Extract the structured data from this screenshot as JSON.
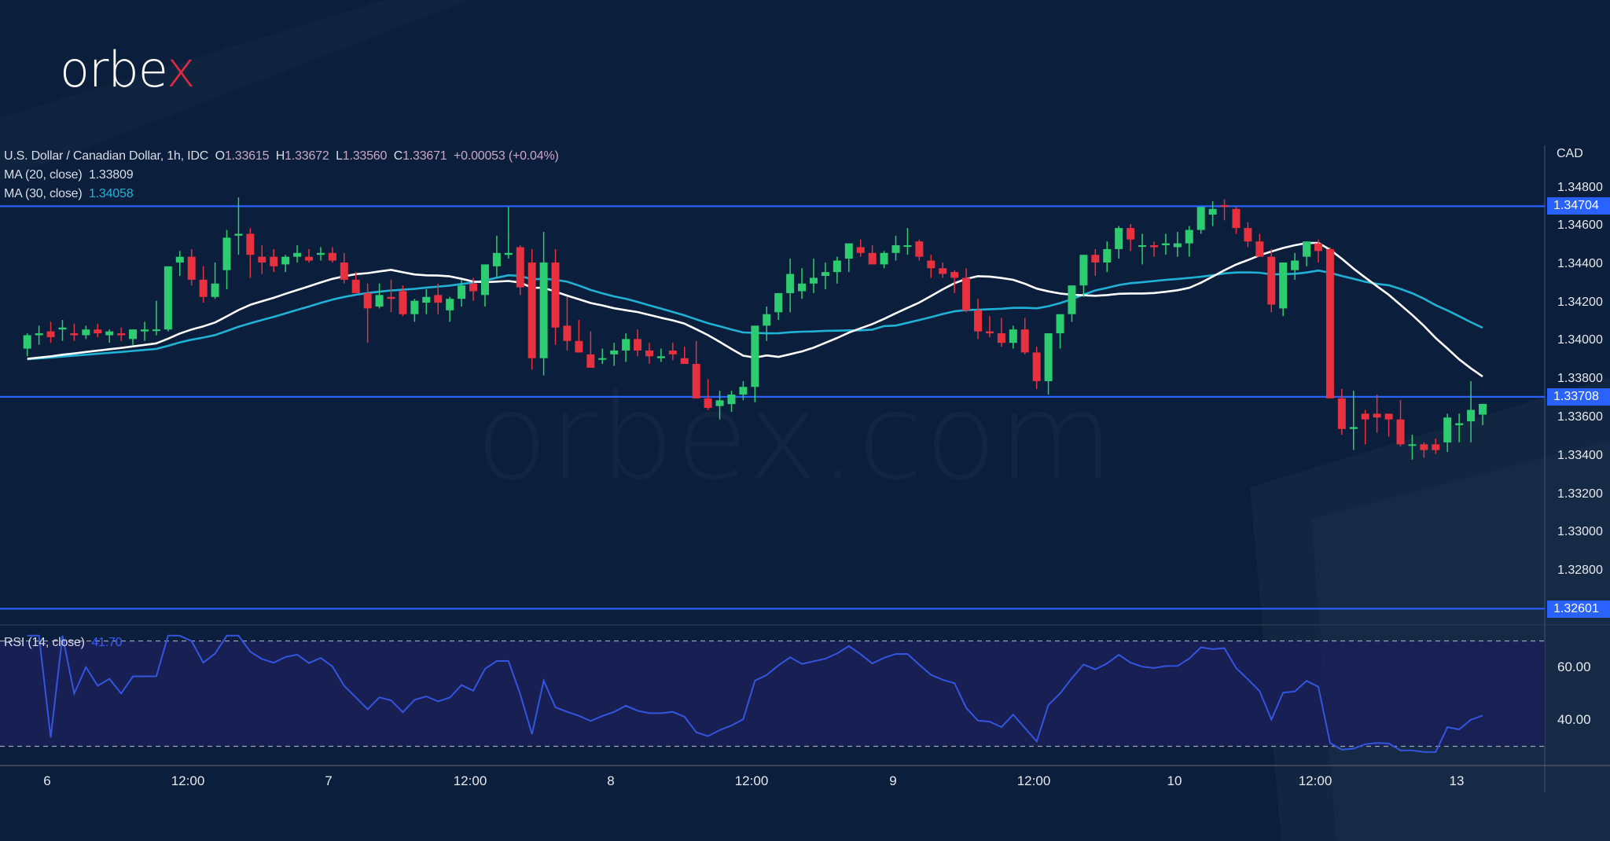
{
  "brand": {
    "logo_text": "orbe",
    "logo_accent": "x",
    "watermark": "orbex.com"
  },
  "legend": {
    "symbol": "U.S. Dollar / Canadian Dollar, 1h, IDC",
    "open_label": "O",
    "open": "1.33615",
    "high_label": "H",
    "high": "1.33672",
    "low_label": "L",
    "low": "1.33560",
    "close_label": "C",
    "close": "1.33671",
    "change": "+0.00053 (+0.04%)",
    "ma20_label": "MA (20, close)",
    "ma20_value": "1.33809",
    "ma30_label": "MA (30, close)",
    "ma30_value": "1.34058",
    "rsi_label": "RSI (14, close)",
    "rsi_value": "41.70"
  },
  "price_axis": {
    "currency": "CAD",
    "ticks": [
      "1.34800",
      "1.34600",
      "1.34400",
      "1.34200",
      "1.34000",
      "1.33800",
      "1.33600",
      "1.33400",
      "1.33200",
      "1.33000",
      "1.32800"
    ],
    "tags": [
      "1.34704",
      "1.33708",
      "1.32601"
    ]
  },
  "rsi_axis": {
    "ticks": [
      "60.00",
      "40.00"
    ]
  },
  "time_axis": {
    "labels": [
      "6",
      "12:00",
      "7",
      "12:00",
      "8",
      "12:00",
      "9",
      "12:00",
      "10",
      "12:00",
      "13"
    ]
  },
  "colors": {
    "background": "#0b1e3b",
    "bull": "#2ecc71",
    "bear": "#e8313f",
    "ma20": "#ffffff",
    "ma30": "#1fb2d6",
    "hline": "#2962ff",
    "rsi_line": "#3355e0",
    "rsi_band": "#1a1f55"
  },
  "chart_data": [
    {
      "type": "candlestick",
      "title": "U.S. Dollar / Canadian Dollar, 1h, IDC",
      "ylabel": "CAD",
      "ylim": [
        1.3268,
        1.349
      ],
      "x_tick_labels": [
        "6",
        "12:00",
        "7",
        "12:00",
        "8",
        "12:00",
        "9",
        "12:00",
        "10",
        "12:00",
        "13"
      ],
      "last_ohlc": {
        "open": 1.33615,
        "high": 1.33672,
        "low": 1.3356,
        "close": 1.33671,
        "change": 0.00053,
        "change_pct": 0.04
      },
      "horizontal_lines": [
        1.34704,
        1.33708,
        1.32601
      ],
      "series": [
        {
          "name": "MA (20, close)",
          "last_value": 1.33809,
          "color": "#ffffff"
        },
        {
          "name": "MA (30, close)",
          "last_value": 1.34058,
          "color": "#1fb2d6"
        }
      ],
      "candles": [
        [
          1.3396,
          1.3404,
          1.3392,
          1.3403
        ],
        [
          1.3403,
          1.3408,
          1.3398,
          1.3404
        ],
        [
          1.3405,
          1.341,
          1.3399,
          1.3402
        ],
        [
          1.3406,
          1.3411,
          1.34,
          1.3407
        ],
        [
          1.3404,
          1.3409,
          1.34,
          1.3403
        ],
        [
          1.3403,
          1.3408,
          1.3401,
          1.3406
        ],
        [
          1.3406,
          1.3409,
          1.3402,
          1.3404
        ],
        [
          1.3403,
          1.3406,
          1.3399,
          1.3405
        ],
        [
          1.3404,
          1.3407,
          1.34,
          1.3403
        ],
        [
          1.3401,
          1.3406,
          1.3398,
          1.3406
        ],
        [
          1.3405,
          1.341,
          1.34,
          1.3406
        ],
        [
          1.3406,
          1.3421,
          1.3403,
          1.3406
        ],
        [
          1.3406,
          1.3438,
          1.3405,
          1.3439
        ],
        [
          1.3441,
          1.3447,
          1.3434,
          1.3444
        ],
        [
          1.3444,
          1.3448,
          1.3429,
          1.3432
        ],
        [
          1.3432,
          1.3439,
          1.342,
          1.3423
        ],
        [
          1.3423,
          1.3441,
          1.3422,
          1.343
        ],
        [
          1.3437,
          1.3458,
          1.3427,
          1.3454
        ],
        [
          1.3455,
          1.3475,
          1.3445,
          1.3456
        ],
        [
          1.3456,
          1.3459,
          1.3433,
          1.3445
        ],
        [
          1.3444,
          1.345,
          1.3435,
          1.3441
        ],
        [
          1.3444,
          1.3448,
          1.3436,
          1.3439
        ],
        [
          1.344,
          1.3445,
          1.3436,
          1.3444
        ],
        [
          1.3444,
          1.345,
          1.3441,
          1.3446
        ],
        [
          1.3444,
          1.3448,
          1.3441,
          1.3442
        ],
        [
          1.3445,
          1.3449,
          1.3442,
          1.3446
        ],
        [
          1.3446,
          1.3449,
          1.3441,
          1.3442
        ],
        [
          1.3441,
          1.3446,
          1.343,
          1.3432
        ],
        [
          1.3432,
          1.3436,
          1.3426,
          1.3425
        ],
        [
          1.3425,
          1.343,
          1.3399,
          1.3417
        ],
        [
          1.3418,
          1.343,
          1.3417,
          1.3424
        ],
        [
          1.3423,
          1.3432,
          1.3415,
          1.3422
        ],
        [
          1.3426,
          1.3429,
          1.3413,
          1.3414
        ],
        [
          1.3414,
          1.3422,
          1.341,
          1.3421
        ],
        [
          1.342,
          1.3427,
          1.3414,
          1.3423
        ],
        [
          1.3424,
          1.343,
          1.3414,
          1.342
        ],
        [
          1.3416,
          1.3423,
          1.341,
          1.3422
        ],
        [
          1.3422,
          1.3432,
          1.3418,
          1.3429
        ],
        [
          1.343,
          1.3433,
          1.3421,
          1.3426
        ],
        [
          1.3424,
          1.3433,
          1.3418,
          1.344
        ],
        [
          1.3439,
          1.3455,
          1.3433,
          1.3446
        ],
        [
          1.3445,
          1.347,
          1.3443,
          1.3446
        ],
        [
          1.3449,
          1.345,
          1.3424,
          1.3428
        ],
        [
          1.3441,
          1.3448,
          1.3385,
          1.3391
        ],
        [
          1.3391,
          1.3457,
          1.3382,
          1.3441
        ],
        [
          1.3441,
          1.3448,
          1.3398,
          1.3407
        ],
        [
          1.3408,
          1.3423,
          1.3395,
          1.34
        ],
        [
          1.34,
          1.3411,
          1.3394,
          1.3394
        ],
        [
          1.3393,
          1.3405,
          1.3388,
          1.3386
        ],
        [
          1.3391,
          1.3396,
          1.3388,
          1.3391
        ],
        [
          1.3393,
          1.3399,
          1.3387,
          1.3395
        ],
        [
          1.3395,
          1.3404,
          1.3389,
          1.3401
        ],
        [
          1.3401,
          1.3406,
          1.3392,
          1.3395
        ],
        [
          1.3395,
          1.3399,
          1.3388,
          1.3392
        ],
        [
          1.3391,
          1.3396,
          1.3389,
          1.3392
        ],
        [
          1.3395,
          1.3399,
          1.339,
          1.3393
        ],
        [
          1.3391,
          1.3397,
          1.3389,
          1.3388
        ],
        [
          1.3388,
          1.34,
          1.3385,
          1.337
        ],
        [
          1.337,
          1.338,
          1.3364,
          1.3365
        ],
        [
          1.3366,
          1.3374,
          1.3359,
          1.3369
        ],
        [
          1.3367,
          1.3374,
          1.3363,
          1.3372
        ],
        [
          1.3372,
          1.3379,
          1.3369,
          1.3376
        ],
        [
          1.3376,
          1.3405,
          1.3368,
          1.3408
        ],
        [
          1.3408,
          1.3418,
          1.34,
          1.3414
        ],
        [
          1.3415,
          1.3425,
          1.3411,
          1.3425
        ],
        [
          1.3425,
          1.3443,
          1.3415,
          1.3435
        ],
        [
          1.3426,
          1.3438,
          1.3422,
          1.343
        ],
        [
          1.343,
          1.3443,
          1.3425,
          1.3433
        ],
        [
          1.3434,
          1.3441,
          1.3427,
          1.3436
        ],
        [
          1.3436,
          1.3444,
          1.343,
          1.3442
        ],
        [
          1.3443,
          1.3449,
          1.3436,
          1.3451
        ],
        [
          1.3449,
          1.3453,
          1.3444,
          1.3446
        ],
        [
          1.3446,
          1.345,
          1.3441,
          1.344
        ],
        [
          1.344,
          1.3447,
          1.3438,
          1.3446
        ],
        [
          1.3446,
          1.3455,
          1.3442,
          1.345
        ],
        [
          1.345,
          1.3459,
          1.3445,
          1.345
        ],
        [
          1.3452,
          1.3453,
          1.3442,
          1.3444
        ],
        [
          1.3442,
          1.3445,
          1.3433,
          1.3438
        ],
        [
          1.3438,
          1.3441,
          1.3433,
          1.3435
        ],
        [
          1.3436,
          1.3437,
          1.3425,
          1.3433
        ],
        [
          1.3433,
          1.3438,
          1.3415,
          1.3416
        ],
        [
          1.3416,
          1.3422,
          1.3401,
          1.3405
        ],
        [
          1.3405,
          1.3413,
          1.3402,
          1.3404
        ],
        [
          1.3404,
          1.3412,
          1.3397,
          1.3399
        ],
        [
          1.3399,
          1.3408,
          1.3396,
          1.3406
        ],
        [
          1.3406,
          1.3412,
          1.3393,
          1.3394
        ],
        [
          1.3394,
          1.3397,
          1.3375,
          1.3379
        ],
        [
          1.3379,
          1.3401,
          1.3372,
          1.3404
        ],
        [
          1.3404,
          1.3414,
          1.3396,
          1.3414
        ],
        [
          1.3414,
          1.3429,
          1.341,
          1.3429
        ],
        [
          1.3429,
          1.3445,
          1.3423,
          1.3445
        ],
        [
          1.3445,
          1.3448,
          1.3434,
          1.3441
        ],
        [
          1.3441,
          1.3452,
          1.3436,
          1.3448
        ],
        [
          1.3448,
          1.346,
          1.3443,
          1.3459
        ],
        [
          1.3459,
          1.3461,
          1.3447,
          1.3453
        ],
        [
          1.345,
          1.3456,
          1.344,
          1.345
        ],
        [
          1.345,
          1.3452,
          1.3444,
          1.3449
        ],
        [
          1.345,
          1.3456,
          1.3445,
          1.3451
        ],
        [
          1.3449,
          1.3457,
          1.3444,
          1.3451
        ],
        [
          1.3451,
          1.346,
          1.3444,
          1.3458
        ],
        [
          1.3458,
          1.3468,
          1.3456,
          1.347
        ],
        [
          1.3466,
          1.3473,
          1.346,
          1.3469
        ],
        [
          1.3471,
          1.3474,
          1.3463,
          1.347
        ],
        [
          1.3469,
          1.347,
          1.3456,
          1.3459
        ],
        [
          1.3459,
          1.3462,
          1.3449,
          1.3452
        ],
        [
          1.3452,
          1.3456,
          1.3444,
          1.3444
        ],
        [
          1.3444,
          1.3448,
          1.3415,
          1.3419
        ],
        [
          1.3417,
          1.3437,
          1.3413,
          1.3441
        ],
        [
          1.3437,
          1.3446,
          1.3432,
          1.3442
        ],
        [
          1.3444,
          1.3452,
          1.3439,
          1.3452
        ],
        [
          1.3451,
          1.3453,
          1.3441,
          1.3447
        ],
        [
          1.3448,
          1.3449,
          1.3382,
          1.337
        ],
        [
          1.337,
          1.3375,
          1.3351,
          1.3354
        ],
        [
          1.3354,
          1.3374,
          1.3343,
          1.3355
        ],
        [
          1.3362,
          1.3364,
          1.3346,
          1.3359
        ],
        [
          1.3362,
          1.3372,
          1.3352,
          1.336
        ],
        [
          1.3362,
          1.3362,
          1.335,
          1.3359
        ],
        [
          1.3359,
          1.3369,
          1.3345,
          1.3346
        ],
        [
          1.3346,
          1.3351,
          1.3338,
          1.3346
        ],
        [
          1.3346,
          1.3347,
          1.3339,
          1.3343
        ],
        [
          1.3346,
          1.3349,
          1.3341,
          1.3343
        ],
        [
          1.3347,
          1.3362,
          1.3342,
          1.336
        ],
        [
          1.3356,
          1.3362,
          1.3347,
          1.3357
        ],
        [
          1.3358,
          1.3379,
          1.3347,
          1.3364
        ],
        [
          1.33615,
          1.33672,
          1.3356,
          1.33671
        ]
      ]
    },
    {
      "type": "line",
      "title": "RSI (14, close)",
      "last_value": 41.7,
      "ylim": [
        25,
        75
      ],
      "bands": {
        "upper": 70,
        "lower": 30
      },
      "y_tick_labels": [
        "60.00",
        "40.00"
      ]
    }
  ]
}
